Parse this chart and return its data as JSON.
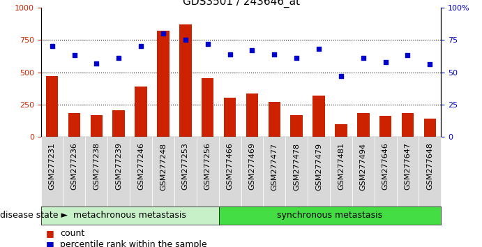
{
  "title": "GDS3501 / 243646_at",
  "categories": [
    "GSM277231",
    "GSM277236",
    "GSM277238",
    "GSM277239",
    "GSM277246",
    "GSM277248",
    "GSM277253",
    "GSM277256",
    "GSM277466",
    "GSM277469",
    "GSM277477",
    "GSM277478",
    "GSM277479",
    "GSM277481",
    "GSM277494",
    "GSM277646",
    "GSM277647",
    "GSM277648"
  ],
  "bar_values": [
    470,
    185,
    170,
    205,
    390,
    820,
    870,
    455,
    305,
    335,
    270,
    170,
    320,
    100,
    185,
    165,
    185,
    145
  ],
  "dot_values": [
    70,
    63,
    57,
    61,
    70,
    80,
    75,
    72,
    64,
    67,
    64,
    61,
    68,
    47,
    61,
    58,
    63,
    56
  ],
  "bar_color": "#CC2200",
  "dot_color": "#0000CC",
  "ylim_left": [
    0,
    1000
  ],
  "ylim_right": [
    0,
    100
  ],
  "yticks_left": [
    0,
    250,
    500,
    750,
    1000
  ],
  "ytick_labels_left": [
    "0",
    "250",
    "500",
    "750",
    "1000"
  ],
  "yticks_right": [
    0,
    25,
    50,
    75,
    100
  ],
  "ytick_labels_right": [
    "0",
    "25",
    "50",
    "75",
    "100%"
  ],
  "hlines": [
    250,
    500,
    750
  ],
  "group1_label": "metachronous metastasis",
  "group2_label": "synchronous metastasis",
  "group1_count": 8,
  "disease_state_label": "disease state",
  "legend_bar_label": "count",
  "legend_dot_label": "percentile rank within the sample",
  "group1_color": "#c8f0c8",
  "group2_color": "#44dd44",
  "background_color": "#ffffff",
  "title_fontsize": 11,
  "tick_fontsize": 8,
  "label_fontsize": 9,
  "xtick_bg_color": "#d8d8d8"
}
